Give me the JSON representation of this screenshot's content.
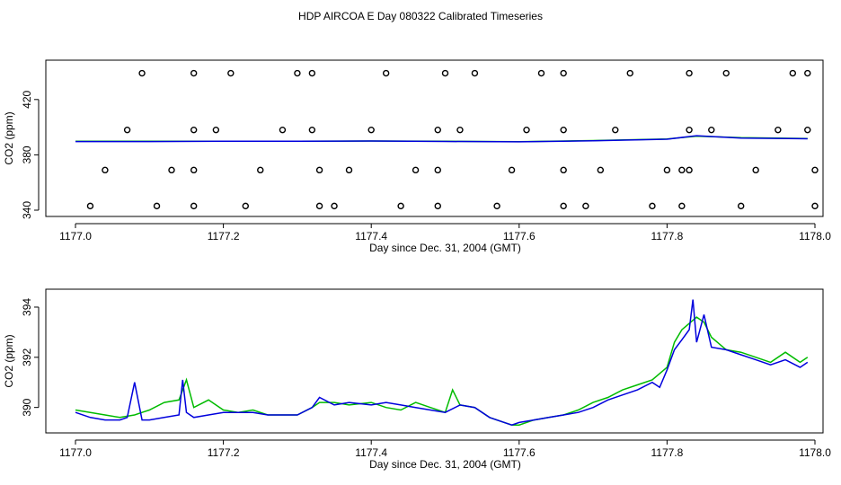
{
  "page_title": "HDP AIRCOA E  Day 080322  Calibrated Timeseries",
  "chart_data": [
    {
      "type": "scatter",
      "xlabel": "Day since Dec. 31, 2004 (GMT)",
      "ylabel": "CO2 (ppm)",
      "xlim": [
        1177.0,
        1178.0
      ],
      "ylim": [
        340,
        440
      ],
      "x_ticks": [
        1177.0,
        1177.2,
        1177.4,
        1177.6,
        1177.8,
        1178.0
      ],
      "x_tick_labels": [
        "1177.0",
        "1177.2",
        "1177.4",
        "1177.6",
        "1177.8",
        "1178.0"
      ],
      "y_ticks": [
        340,
        380,
        420
      ],
      "y_tick_labels": [
        "340",
        "380",
        "420"
      ],
      "colors": {
        "line_green": "#00bb00",
        "line_blue": "#0000dd",
        "marker": "#000000"
      },
      "series": [
        {
          "kind": "points",
          "x": [
            1177.09,
            1177.16,
            1177.21,
            1177.3,
            1177.32,
            1177.42,
            1177.5,
            1177.54,
            1177.63,
            1177.66,
            1177.75,
            1177.83,
            1177.88,
            1177.97,
            1177.99,
            1177.07,
            1177.16,
            1177.19,
            1177.28,
            1177.32,
            1177.4,
            1177.49,
            1177.52,
            1177.61,
            1177.66,
            1177.73,
            1177.83,
            1177.86,
            1177.95,
            1177.99,
            1177.04,
            1177.13,
            1177.16,
            1177.25,
            1177.33,
            1177.37,
            1177.46,
            1177.49,
            1177.59,
            1177.66,
            1177.71,
            1177.8,
            1177.82,
            1177.83,
            1177.92,
            1178.0,
            1177.02,
            1177.11,
            1177.16,
            1177.23,
            1177.33,
            1177.35,
            1177.44,
            1177.49,
            1177.57,
            1177.66,
            1177.69,
            1177.78,
            1177.82,
            1177.9,
            1178.0
          ],
          "y": [
            439,
            439,
            439,
            439,
            439,
            439,
            439,
            439,
            439,
            439,
            439,
            439,
            439,
            439,
            439,
            398,
            398,
            398,
            398,
            398,
            398,
            398,
            398,
            398,
            398,
            398,
            398,
            398,
            398,
            398,
            369,
            369,
            369,
            369,
            369,
            369,
            369,
            369,
            369,
            369,
            369,
            369,
            369,
            369,
            369,
            369,
            343,
            343,
            343,
            343,
            343,
            343,
            343,
            343,
            343,
            343,
            343,
            343,
            343,
            343,
            343
          ]
        },
        {
          "kind": "line",
          "color": "green",
          "x": [
            1177.0,
            1177.1,
            1177.2,
            1177.3,
            1177.4,
            1177.5,
            1177.6,
            1177.7,
            1177.8,
            1177.84,
            1177.9,
            1177.99
          ],
          "y": [
            389.8,
            389.8,
            389.9,
            389.9,
            390.0,
            389.8,
            389.5,
            390.3,
            391.5,
            393.5,
            392.4,
            391.8
          ]
        },
        {
          "kind": "line",
          "color": "blue",
          "x": [
            1177.0,
            1177.1,
            1177.2,
            1177.3,
            1177.4,
            1177.5,
            1177.6,
            1177.7,
            1177.8,
            1177.84,
            1177.9,
            1177.99
          ],
          "y": [
            389.6,
            389.6,
            389.8,
            389.8,
            390.0,
            389.7,
            389.4,
            390.1,
            391.3,
            393.8,
            392.1,
            391.6
          ]
        }
      ]
    },
    {
      "type": "line",
      "xlabel": "Day since Dec. 31, 2004 (GMT)",
      "ylabel": "CO2 (ppm)",
      "xlim": [
        1177.0,
        1178.0
      ],
      "ylim": [
        389.2,
        394.5
      ],
      "x_ticks": [
        1177.0,
        1177.2,
        1177.4,
        1177.6,
        1177.8,
        1178.0
      ],
      "x_tick_labels": [
        "1177.0",
        "1177.2",
        "1177.4",
        "1177.6",
        "1177.8",
        "1178.0"
      ],
      "y_ticks": [
        390,
        392,
        394
      ],
      "y_tick_labels": [
        "390",
        "392",
        "394"
      ],
      "colors": {
        "green": "#00bb00",
        "blue": "#0000dd"
      },
      "series": [
        {
          "color": "green",
          "x": [
            1177.0,
            1177.02,
            1177.04,
            1177.06,
            1177.08,
            1177.09,
            1177.1,
            1177.12,
            1177.14,
            1177.15,
            1177.16,
            1177.18,
            1177.2,
            1177.22,
            1177.24,
            1177.26,
            1177.28,
            1177.3,
            1177.32,
            1177.33,
            1177.35,
            1177.37,
            1177.4,
            1177.42,
            1177.44,
            1177.46,
            1177.48,
            1177.5,
            1177.51,
            1177.52,
            1177.54,
            1177.56,
            1177.58,
            1177.59,
            1177.6,
            1177.62,
            1177.64,
            1177.66,
            1177.68,
            1177.7,
            1177.72,
            1177.74,
            1177.76,
            1177.78,
            1177.8,
            1177.81,
            1177.82,
            1177.84,
            1177.85,
            1177.86,
            1177.88,
            1177.9,
            1177.92,
            1177.94,
            1177.96,
            1177.98,
            1177.99
          ],
          "y": [
            389.9,
            389.8,
            389.7,
            389.6,
            389.7,
            389.8,
            389.9,
            390.2,
            390.3,
            391.1,
            390.0,
            390.3,
            389.9,
            389.8,
            389.9,
            389.7,
            389.7,
            389.7,
            390.0,
            390.2,
            390.2,
            390.1,
            390.2,
            390.0,
            389.9,
            390.2,
            390.0,
            389.8,
            390.7,
            390.1,
            390.0,
            389.6,
            389.4,
            389.3,
            389.3,
            389.5,
            389.6,
            389.7,
            389.9,
            390.2,
            390.4,
            390.7,
            390.9,
            391.1,
            391.6,
            392.6,
            393.1,
            393.6,
            393.4,
            392.8,
            392.3,
            392.2,
            392.0,
            391.8,
            392.2,
            391.8,
            392.0
          ]
        },
        {
          "color": "blue",
          "x": [
            1177.0,
            1177.02,
            1177.04,
            1177.06,
            1177.07,
            1177.08,
            1177.09,
            1177.1,
            1177.12,
            1177.14,
            1177.145,
            1177.15,
            1177.16,
            1177.18,
            1177.2,
            1177.22,
            1177.24,
            1177.26,
            1177.28,
            1177.3,
            1177.32,
            1177.33,
            1177.35,
            1177.37,
            1177.4,
            1177.42,
            1177.44,
            1177.46,
            1177.48,
            1177.5,
            1177.52,
            1177.54,
            1177.56,
            1177.58,
            1177.59,
            1177.6,
            1177.62,
            1177.64,
            1177.66,
            1177.68,
            1177.7,
            1177.72,
            1177.74,
            1177.76,
            1177.78,
            1177.79,
            1177.8,
            1177.81,
            1177.82,
            1177.83,
            1177.835,
            1177.84,
            1177.85,
            1177.86,
            1177.88,
            1177.9,
            1177.92,
            1177.94,
            1177.96,
            1177.98,
            1177.99
          ],
          "y": [
            389.8,
            389.6,
            389.5,
            389.5,
            389.6,
            391.0,
            389.5,
            389.5,
            389.6,
            389.7,
            391.1,
            389.8,
            389.6,
            389.7,
            389.8,
            389.8,
            389.8,
            389.7,
            389.7,
            389.7,
            390.0,
            390.4,
            390.1,
            390.2,
            390.1,
            390.2,
            390.1,
            390.0,
            389.9,
            389.8,
            390.1,
            390.0,
            389.6,
            389.4,
            389.3,
            389.4,
            389.5,
            389.6,
            389.7,
            389.8,
            390.0,
            390.3,
            390.5,
            390.7,
            391.0,
            390.8,
            391.5,
            392.3,
            392.7,
            393.1,
            394.3,
            392.6,
            393.7,
            392.4,
            392.3,
            392.1,
            391.9,
            391.7,
            391.9,
            391.6,
            391.8
          ]
        }
      ]
    }
  ]
}
